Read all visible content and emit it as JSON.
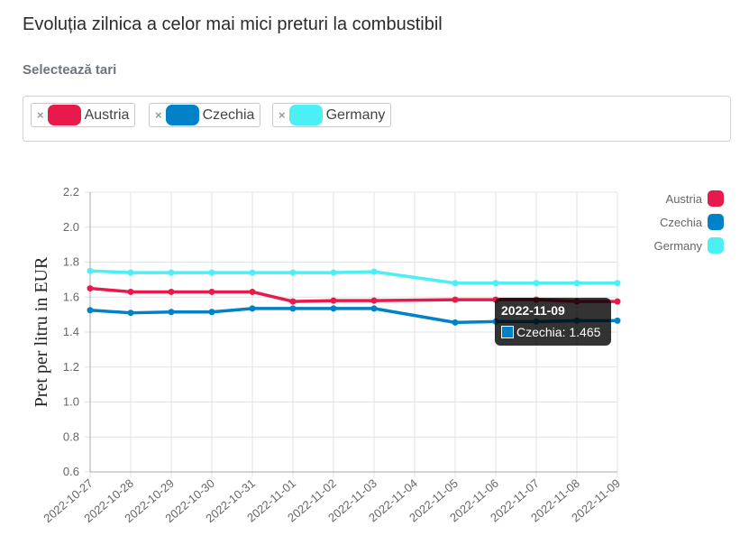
{
  "title": "Evoluția zilnica a celor mai mici preturi la combustibil",
  "selector": {
    "label": "Selectează tari",
    "chips": [
      {
        "label": "Austria",
        "remove": "×",
        "color": "#e8194b"
      },
      {
        "label": "Czechia",
        "remove": "×",
        "color": "#0081c8"
      },
      {
        "label": "Germany",
        "remove": "×",
        "color": "#4cf0f4"
      }
    ]
  },
  "tooltip": {
    "title": "2022-11-09",
    "body": "Czechia: 1.465"
  },
  "chart_data": {
    "type": "line",
    "title": "",
    "xlabel": "",
    "ylabel": "Pret per litru in EUR",
    "ylim": [
      0.6,
      2.2
    ],
    "yticks": [
      "2.2",
      "2.0",
      "1.8",
      "1.6",
      "1.4",
      "1.2",
      "1.0",
      "0.8",
      "0.6"
    ],
    "grid": true,
    "legend": "right",
    "categories": [
      "2022-10-27",
      "2022-10-28",
      "2022-10-29",
      "2022-10-30",
      "2022-10-31",
      "2022-11-01",
      "2022-11-02",
      "2022-11-03",
      "2022-11-04",
      "2022-11-05",
      "2022-11-06",
      "2022-11-07",
      "2022-11-08",
      "2022-11-09"
    ],
    "series": [
      {
        "name": "Austria",
        "color": "#e8194b",
        "values": [
          1.65,
          1.63,
          1.63,
          1.63,
          1.63,
          1.575,
          1.58,
          1.58,
          null,
          1.585,
          1.585,
          1.585,
          1.575,
          1.575
        ]
      },
      {
        "name": "Czechia",
        "color": "#0081c8",
        "values": [
          1.525,
          1.51,
          1.515,
          1.515,
          1.535,
          1.535,
          1.535,
          1.535,
          null,
          1.455,
          1.46,
          1.46,
          1.465,
          1.465
        ]
      },
      {
        "name": "Germany",
        "color": "#4cf0f4",
        "values": [
          1.75,
          1.74,
          1.74,
          1.74,
          1.74,
          1.74,
          1.74,
          1.745,
          null,
          1.68,
          1.68,
          1.68,
          1.68,
          1.68
        ]
      }
    ]
  }
}
